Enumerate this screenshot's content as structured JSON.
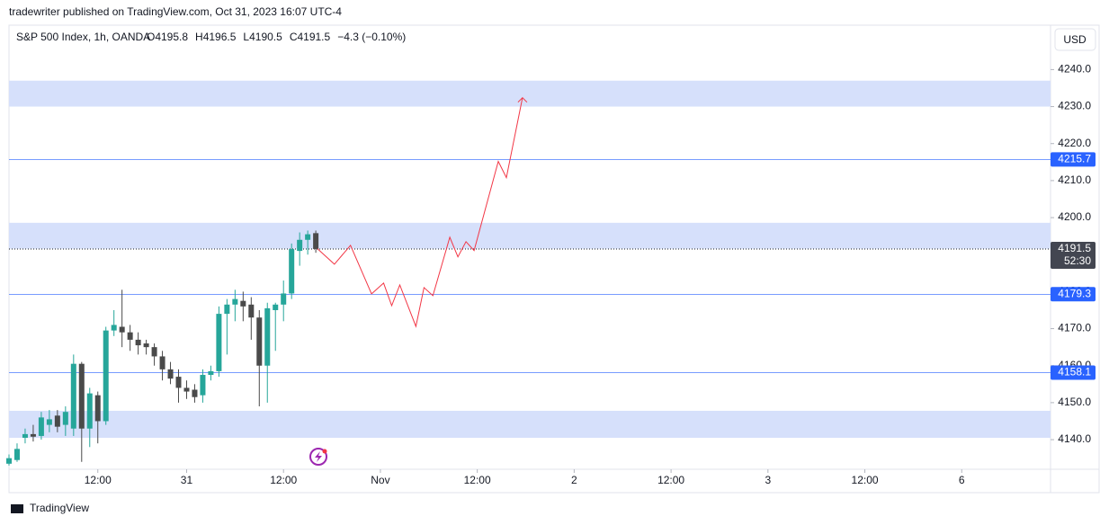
{
  "header": "tradewriter published on TradingView.com, Oct 31, 2023 16:07 UTC-4",
  "footer": "TradingView",
  "chart_data": {
    "type": "candlestick",
    "title": "S&P 500 Index, 1h, OANDA",
    "ohlc_legend": [
      "O4195.8",
      "H4196.5",
      "L4190.5",
      "C4191.5",
      "−4.3 (−0.10%)"
    ],
    "currency": "USD",
    "x": [
      0,
      1,
      2,
      3,
      4,
      5,
      6,
      7,
      8,
      9,
      10,
      11,
      12,
      13,
      14,
      15,
      16,
      17,
      18,
      19,
      20,
      21,
      22,
      23,
      24,
      25,
      26,
      27,
      28,
      29,
      30,
      31,
      32,
      33,
      34,
      35,
      36,
      37,
      38
    ],
    "open": [
      4133.5,
      4134.5,
      4140.5,
      4141.5,
      4141,
      4144,
      4146.5,
      4144,
      4143,
      4160.5,
      4143,
      4152,
      4145,
      4169.5,
      4170.5,
      4169,
      4167,
      4166,
      4165,
      4162.5,
      4159,
      4157,
      4154,
      4153.5,
      4152,
      4157.5,
      4158.5,
      4174,
      4176.5,
      4177.5,
      4176.5,
      4173,
      4160,
      4175,
      4176.5,
      4179.5,
      4191,
      4194,
      4195.8
    ],
    "high": [
      4136,
      4139,
      4143,
      4144,
      4147.5,
      4148,
      4148,
      4149,
      4163,
      4161,
      4154,
      4153,
      4170.5,
      4175,
      4180.5,
      4171,
      4169,
      4167,
      4166,
      4164,
      4161,
      4159,
      4156,
      4155,
      4159,
      4160,
      4176,
      4178,
      4180.5,
      4180,
      4178.5,
      4175,
      4177,
      4177,
      4183,
      4193,
      4196,
      4196.5,
      4196.5
    ],
    "low": [
      4133,
      4134,
      4139,
      4139.5,
      4140,
      4142,
      4142,
      4141,
      4141,
      4134,
      4138,
      4139,
      4144,
      4168,
      4165,
      4164,
      4163,
      4163,
      4160,
      4156,
      4155,
      4150,
      4151,
      4150,
      4150,
      4156,
      4157,
      4163,
      4172,
      4172,
      4167,
      4149,
      4150,
      4164,
      4172,
      4178,
      4187,
      4190,
      4190.5
    ],
    "close": [
      4135,
      4137.5,
      4141.5,
      4140.8,
      4146,
      4145.5,
      4143.5,
      4147.5,
      4160.5,
      4143,
      4152.5,
      4145,
      4169.5,
      4171,
      4169,
      4167,
      4165.5,
      4165,
      4162.5,
      4159,
      4156.5,
      4154,
      4153,
      4151.5,
      4157.5,
      4158.5,
      4174,
      4176.5,
      4178,
      4176,
      4173,
      4160,
      4175.5,
      4176.5,
      4179.5,
      4191.5,
      4194,
      4195.5,
      4191.5
    ],
    "up_color": "#26a69a",
    "down_color": "#4a4a4a",
    "xlim": [
      0,
      129
    ],
    "xticks": [
      {
        "value": 11,
        "label": "12:00"
      },
      {
        "value": 22,
        "label": "31"
      },
      {
        "value": 34,
        "label": "12:00"
      },
      {
        "value": 46,
        "label": "Nov"
      },
      {
        "value": 58,
        "label": "12:00"
      },
      {
        "value": 70,
        "label": "2"
      },
      {
        "value": 82,
        "label": "12:00"
      },
      {
        "value": 94,
        "label": "3"
      },
      {
        "value": 106,
        "label": "12:00"
      },
      {
        "value": 118,
        "label": "6"
      }
    ],
    "ylim": [
      4132,
      4252
    ],
    "yticks": [
      {
        "value": 4140,
        "label": "4140.0"
      },
      {
        "value": 4150,
        "label": "4150.0"
      },
      {
        "value": 4160,
        "label": "4160.0"
      },
      {
        "value": 4170,
        "label": "4170.0"
      },
      {
        "value": 4180,
        "label": "4180.0"
      },
      {
        "value": 4190,
        "label": "4190.0"
      },
      {
        "value": 4200,
        "label": "4200.0"
      },
      {
        "value": 4210,
        "label": "4210.0"
      },
      {
        "value": 4220,
        "label": "4220.0"
      },
      {
        "value": 4230,
        "label": "4230.0"
      },
      {
        "value": 4240,
        "label": "4240.0"
      }
    ],
    "zones": [
      {
        "from": 4230,
        "to": 4237,
        "color": "#d6e0fb"
      },
      {
        "from": 4191.6,
        "to": 4198.6,
        "color": "#d6e0fb"
      },
      {
        "from": 4140.5,
        "to": 4147.8,
        "color": "#d6e0fb"
      }
    ],
    "levels": [
      {
        "value": 4215.7,
        "color": "#2962ff"
      },
      {
        "value": 4179.3,
        "color": "#2962ff"
      },
      {
        "value": 4158.1,
        "color": "#2962ff"
      }
    ],
    "last_price": 4191.5,
    "countdown": "52:30",
    "projection": {
      "color": "#f23645",
      "x": [
        38.2,
        40.3,
        42.3,
        44.9,
        46.4,
        47.4,
        48.4,
        50.4,
        51.4,
        52.5,
        54.6,
        55.6,
        56.6,
        57.6,
        60.6,
        61.6,
        63.6
      ],
      "y": [
        4191.6,
        4187.4,
        4192.5,
        4179.4,
        4182.3,
        4176.2,
        4181.8,
        4170.6,
        4181.1,
        4178.9,
        4194.7,
        4189.4,
        4193.5,
        4191.1,
        4215.2,
        4210.8,
        4232.4
      ]
    }
  }
}
